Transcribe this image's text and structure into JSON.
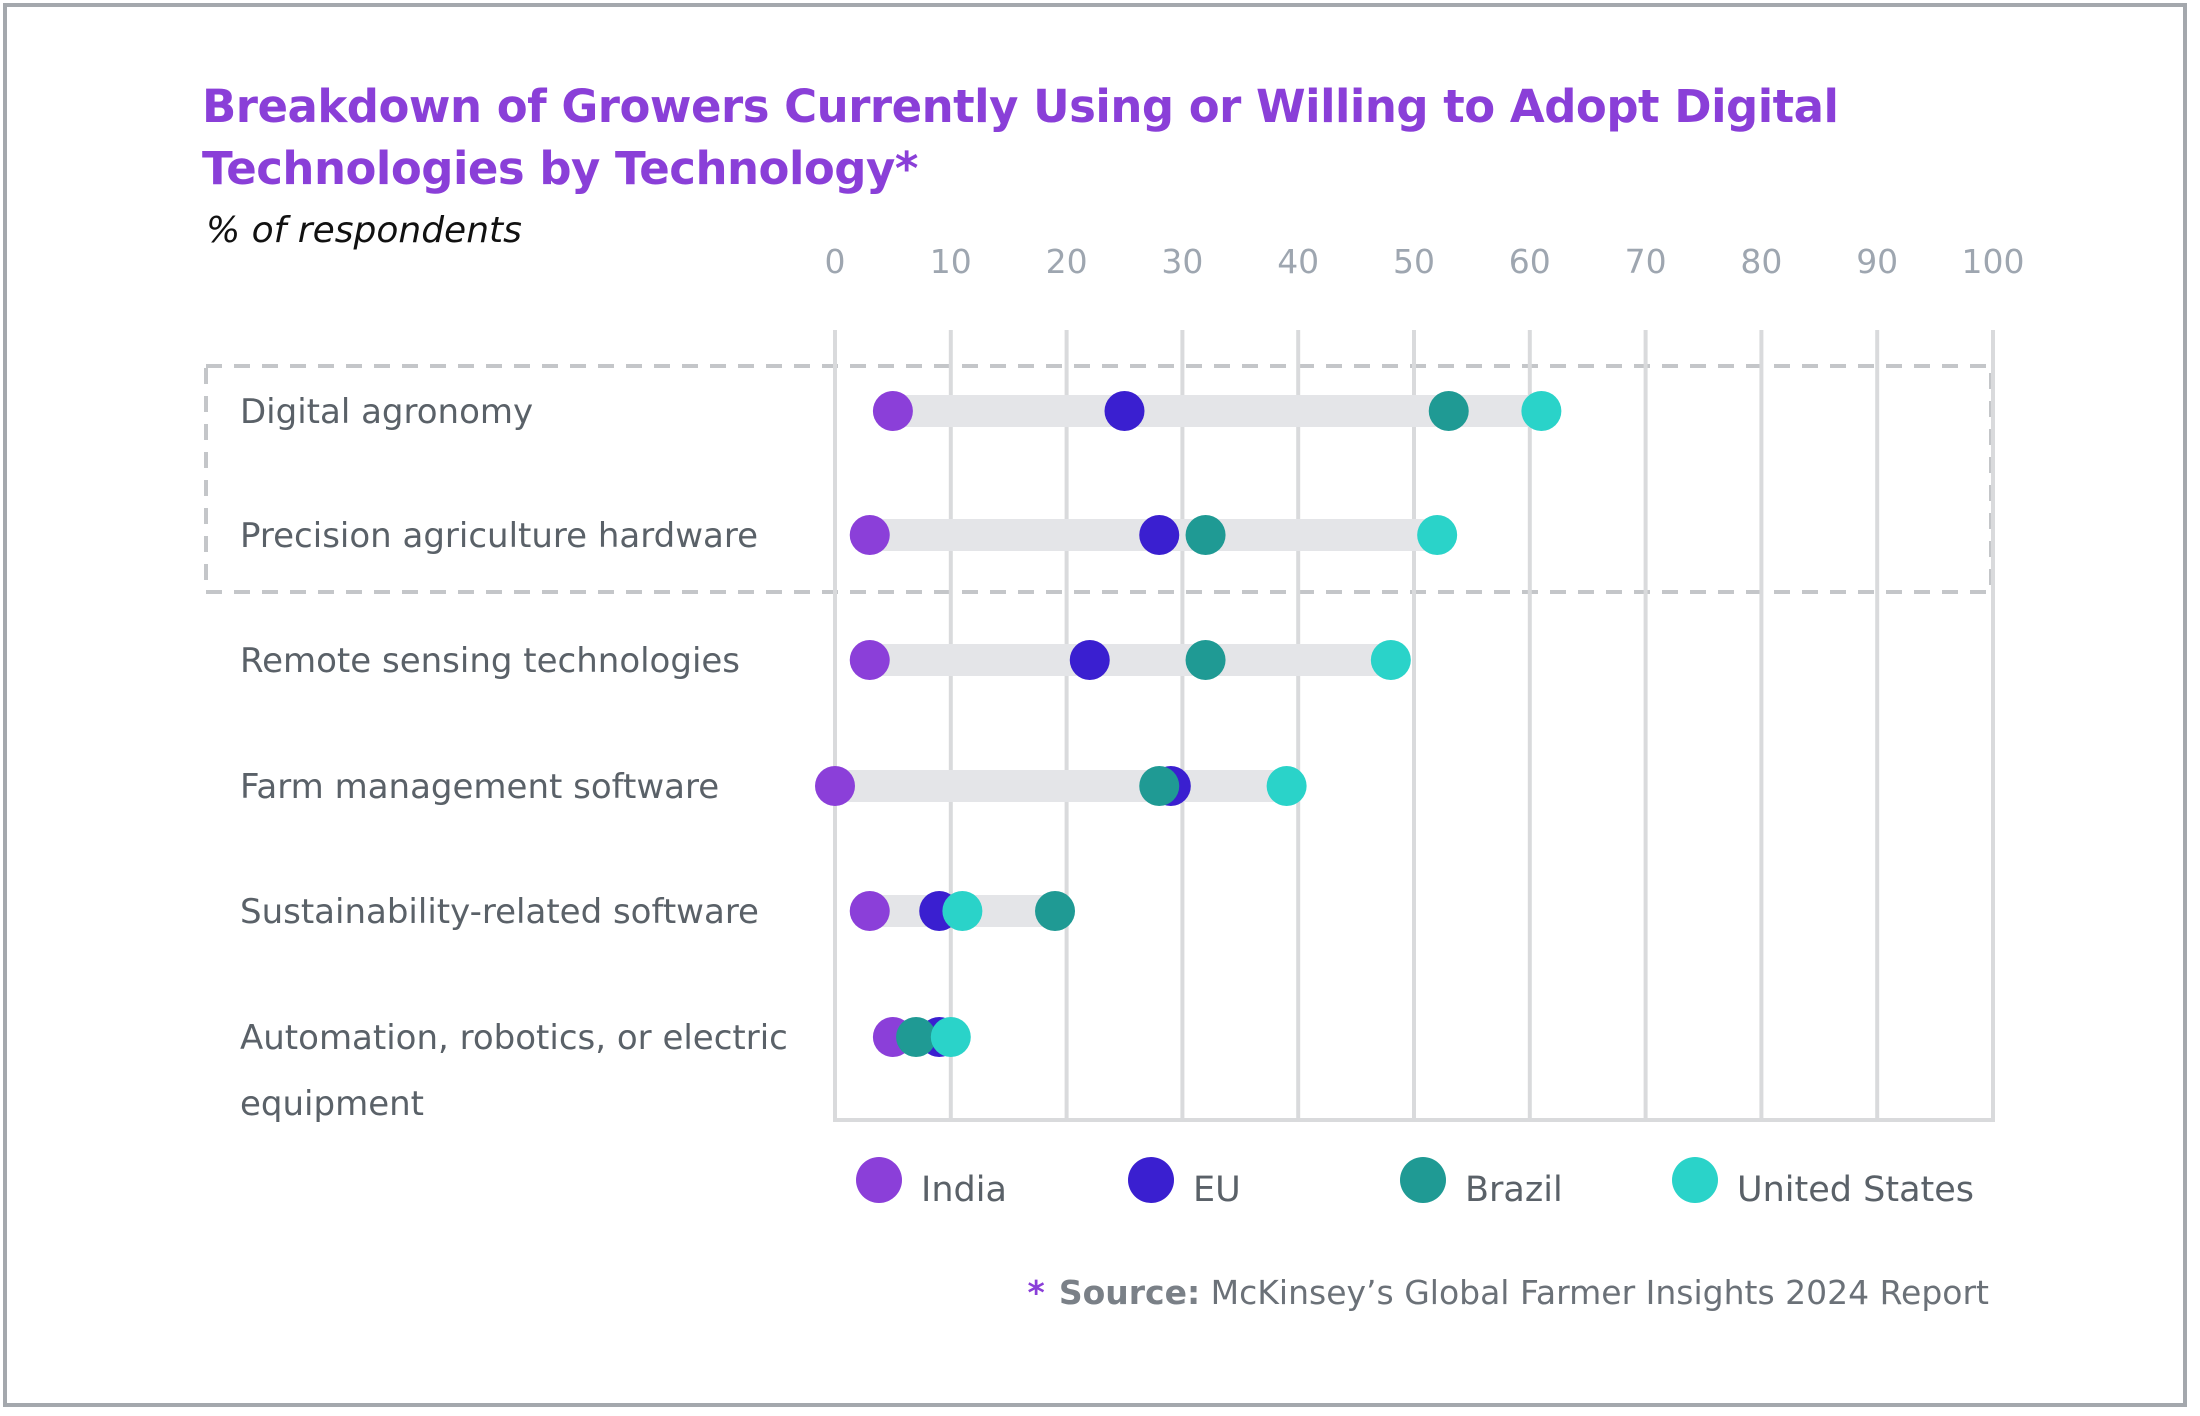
{
  "title": "Breakdown of Growers Currently Using or Willing to Adopt Digital Technologies by Technology*",
  "subtitle": "% of respondents",
  "footnote": {
    "star": "*",
    "label": "Source:",
    "text": "McKinsey’s Global Farmer Insights 2024 Report"
  },
  "colors": {
    "title": "#8a3fd8",
    "grid": "#d9dadc",
    "range_bar": "#e4e5e8",
    "highlight_box": "#c4c6c9"
  },
  "chart_data": {
    "type": "dot-range",
    "title": "Breakdown of Growers Currently Using or Willing to Adopt Digital Technologies by Technology*",
    "xlabel": "",
    "ylabel": "% of respondents",
    "xlim": [
      0,
      100
    ],
    "xticks": [
      "0",
      "10",
      "20",
      "30",
      "40",
      "50",
      "60",
      "70",
      "80",
      "90",
      "100"
    ],
    "grid": true,
    "legend_position": "bottom",
    "highlighted_categories": [
      "Digital agronomy",
      "Precision agriculture hardware"
    ],
    "categories": [
      [
        "Digital agronomy"
      ],
      [
        "Precision agriculture hardware"
      ],
      [
        "Remote sensing technologies"
      ],
      [
        "Farm management software"
      ],
      [
        "Sustainability-related software"
      ],
      [
        "Automation, robotics, or electric",
        "equipment"
      ]
    ],
    "series": [
      {
        "name": "India",
        "color": "#8b3fd9",
        "values": [
          5,
          3,
          3,
          0,
          3,
          5
        ]
      },
      {
        "name": "EU",
        "color": "#3a1fd0",
        "values": [
          25,
          28,
          22,
          29,
          9,
          9
        ]
      },
      {
        "name": "Brazil",
        "color": "#1f9a94",
        "values": [
          53,
          32,
          32,
          28,
          19,
          7
        ]
      },
      {
        "name": "United States",
        "color": "#2ad3c9",
        "values": [
          61,
          52,
          48,
          39,
          11,
          10
        ]
      }
    ]
  }
}
